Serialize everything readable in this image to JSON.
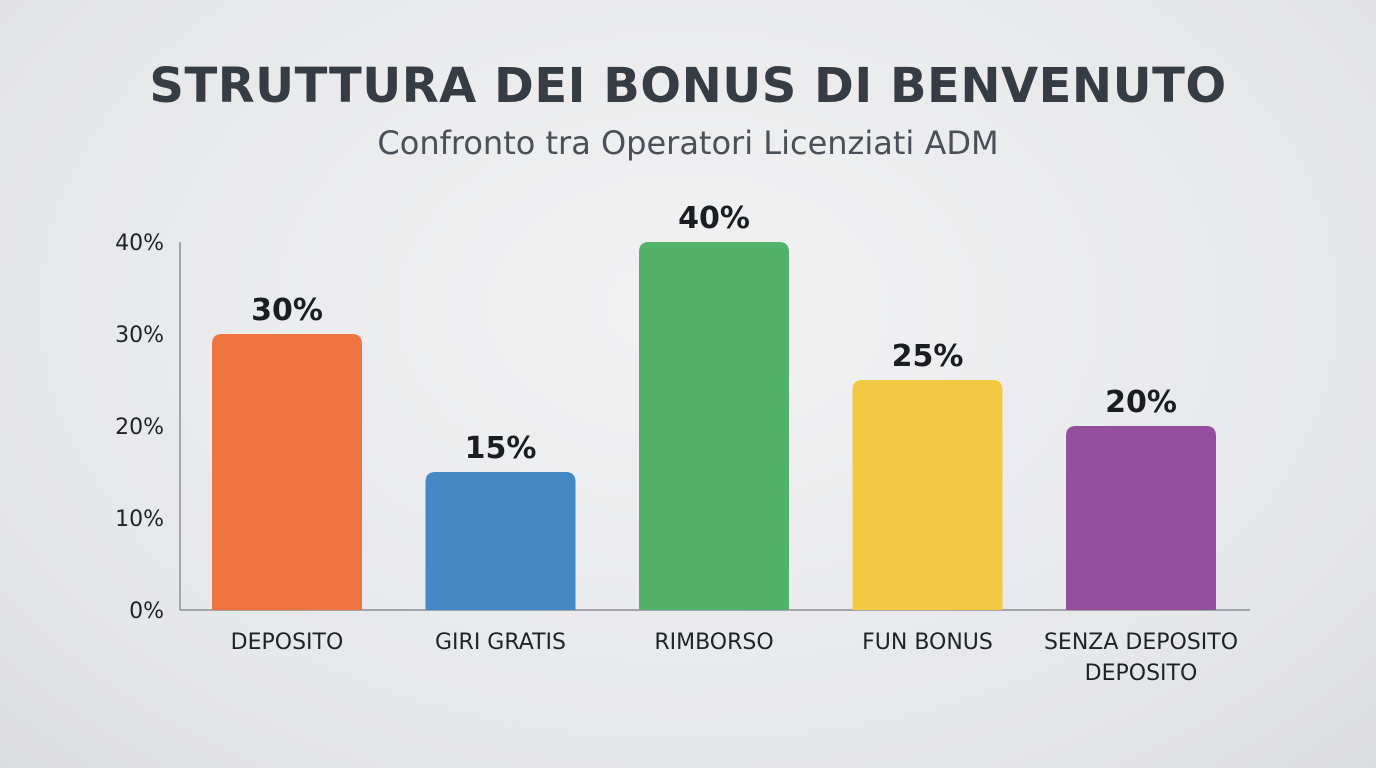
{
  "chart_data": {
    "type": "bar",
    "title": "STRUTTURA DEI BONUS DI BENVENUTO",
    "subtitle": "Confronto tra Operatori Licenziati ADM",
    "categories": [
      [
        "DEPOSITO"
      ],
      [
        "GIRI GRATIS"
      ],
      [
        "RIMBORSO"
      ],
      [
        "FUN BONUS"
      ],
      [
        "SENZA DEPOSITO",
        "DEPOSITO"
      ]
    ],
    "values": [
      30,
      15,
      40,
      25,
      20
    ],
    "value_labels": [
      "30%",
      "15%",
      "40%",
      "25%",
      "20%"
    ],
    "colors": [
      "#ee7440",
      "#4289c6",
      "#52b26a",
      "#f1c943",
      "#934e9e"
    ],
    "yticks": [
      {
        "value": 0,
        "label": "0%"
      },
      {
        "value": 10,
        "label": "10%"
      },
      {
        "value": 20,
        "label": "20%"
      },
      {
        "value": 30,
        "label": "30%"
      },
      {
        "value": 40,
        "label": "40%"
      }
    ],
    "ylim": [
      0,
      40
    ],
    "grid": false,
    "xlabel": "",
    "ylabel": ""
  }
}
